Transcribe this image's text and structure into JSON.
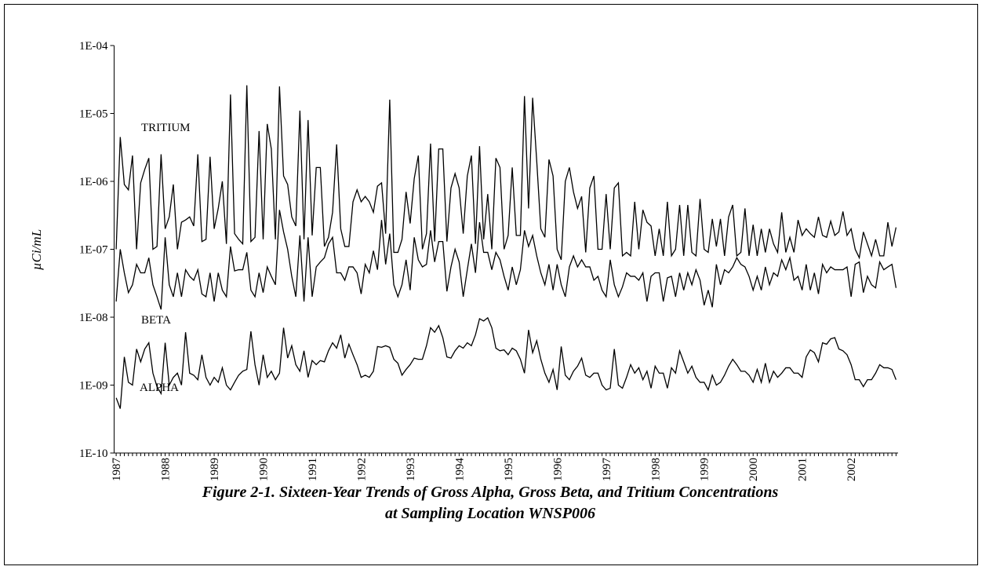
{
  "chart_data": {
    "type": "line",
    "caption": [
      "Figure 2-1. Sixteen-Year Trends of Gross Alpha, Gross Beta, and Tritium Concentrations",
      "at Sampling Location WNSP006"
    ],
    "y_label": "µCi/mL",
    "log_y": true,
    "grid": false,
    "ylim": [
      1e-10,
      0.0001
    ],
    "yticks": [
      {
        "value": 1e-10,
        "label": "1E-10"
      },
      {
        "value": 1e-09,
        "label": "1E-09"
      },
      {
        "value": 1e-08,
        "label": "1E-08"
      },
      {
        "value": 1e-07,
        "label": "1E-07"
      },
      {
        "value": 1e-06,
        "label": "1E-06"
      },
      {
        "value": 1e-05,
        "label": "1E-05"
      },
      {
        "value": 0.0001,
        "label": "1E-04"
      }
    ],
    "categories": [
      "1987",
      null,
      null,
      null,
      null,
      null,
      null,
      null,
      null,
      null,
      null,
      null,
      "1988",
      null,
      null,
      null,
      null,
      null,
      null,
      null,
      null,
      null,
      null,
      null,
      "1989",
      null,
      null,
      null,
      null,
      null,
      null,
      null,
      null,
      null,
      null,
      null,
      "1990",
      null,
      null,
      null,
      null,
      null,
      null,
      null,
      null,
      null,
      null,
      null,
      "1991",
      null,
      null,
      null,
      null,
      null,
      null,
      null,
      null,
      null,
      null,
      null,
      "1992",
      null,
      null,
      null,
      null,
      null,
      null,
      null,
      null,
      null,
      null,
      null,
      "1993",
      null,
      null,
      null,
      null,
      null,
      null,
      null,
      null,
      null,
      null,
      null,
      "1994",
      null,
      null,
      null,
      null,
      null,
      null,
      null,
      null,
      null,
      null,
      null,
      "1995",
      null,
      null,
      null,
      null,
      null,
      null,
      null,
      null,
      null,
      null,
      null,
      "1996",
      null,
      null,
      null,
      null,
      null,
      null,
      null,
      null,
      null,
      null,
      null,
      "1997",
      null,
      null,
      null,
      null,
      null,
      null,
      null,
      null,
      null,
      null,
      null,
      "1998",
      null,
      null,
      null,
      null,
      null,
      null,
      null,
      null,
      null,
      null,
      null,
      "1999",
      null,
      null,
      null,
      null,
      null,
      null,
      null,
      null,
      null,
      null,
      null,
      "2000",
      null,
      null,
      null,
      null,
      null,
      null,
      null,
      null,
      null,
      null,
      null,
      "2001",
      null,
      null,
      null,
      null,
      null,
      null,
      null,
      null,
      null,
      null,
      null,
      "2002",
      null,
      null,
      null,
      null,
      null,
      null,
      null,
      null,
      null,
      null,
      null
    ],
    "series": [
      {
        "name": "TRITIUM",
        "color": "#000000",
        "values": [
          1e-07,
          4.5e-06,
          9e-07,
          7.5e-07,
          2.4e-06,
          1e-07,
          9.5e-07,
          1.5e-06,
          2.2e-06,
          1e-07,
          1.1e-07,
          2.5e-06,
          2e-07,
          3e-07,
          9e-07,
          1e-07,
          2.5e-07,
          2.7e-07,
          3e-07,
          2.2e-07,
          2.5e-06,
          1.3e-07,
          1.4e-07,
          2.3e-06,
          2e-07,
          4e-07,
          1e-06,
          1.2e-07,
          1.9e-05,
          1.7e-07,
          1.4e-07,
          1.2e-07,
          2.6e-05,
          1.3e-07,
          1.5e-07,
          5.5e-06,
          1.4e-07,
          7e-06,
          3e-06,
          1.4e-07,
          2.5e-05,
          1.2e-06,
          9e-07,
          3e-07,
          2.2e-07,
          1.1e-05,
          1.4e-07,
          8e-06,
          1.6e-07,
          1.6e-06,
          1.6e-06,
          1.1e-07,
          1.5e-07,
          3.5e-07,
          3.5e-06,
          2e-07,
          1.1e-07,
          1.1e-07,
          5e-07,
          7.5e-07,
          5e-07,
          6e-07,
          5e-07,
          3.5e-07,
          8.5e-07,
          9.5e-07,
          1.7e-07,
          1.6e-05,
          9e-08,
          9e-08,
          1.4e-07,
          7e-07,
          2.4e-07,
          1.1e-06,
          2.4e-06,
          1e-07,
          1.7e-07,
          3.6e-06,
          1.3e-07,
          3e-06,
          3e-06,
          1.3e-07,
          8e-07,
          1.3e-06,
          8e-07,
          1.7e-07,
          1.2e-06,
          2.4e-06,
          1.2e-07,
          3.3e-06,
          1.4e-07,
          6.5e-07,
          1e-07,
          2.2e-06,
          1.6e-06,
          1e-07,
          1.6e-07,
          1.6e-06,
          1.6e-07,
          1.6e-07,
          1.8e-05,
          4e-07,
          1.7e-05,
          2e-06,
          2e-07,
          1.5e-07,
          2.1e-06,
          1.2e-06,
          1e-07,
          7e-08,
          1e-06,
          1.6e-06,
          7e-07,
          4e-07,
          6e-07,
          9e-08,
          8e-07,
          1.2e-06,
          1e-07,
          1e-07,
          6.5e-07,
          1e-07,
          8e-07,
          9.5e-07,
          8e-08,
          9e-08,
          8e-08,
          5e-07,
          1e-07,
          3.8e-07,
          2.5e-07,
          2.2e-07,
          8e-08,
          2e-07,
          8e-08,
          5e-07,
          8e-08,
          1e-07,
          4.5e-07,
          8e-08,
          4.5e-07,
          9e-08,
          8e-08,
          5.5e-07,
          1e-07,
          9e-08,
          2.8e-07,
          1.1e-07,
          2.8e-07,
          8e-08,
          3e-07,
          4.5e-07,
          8e-08,
          9e-08,
          4e-07,
          8e-08,
          2.3e-07,
          8e-08,
          2e-07,
          9e-08,
          2e-07,
          1.2e-07,
          9e-08,
          3.5e-07,
          9e-08,
          1.5e-07,
          9e-08,
          2.7e-07,
          1.6e-07,
          2e-07,
          1.7e-07,
          1.5e-07,
          3e-07,
          1.6e-07,
          1.5e-07,
          2.6e-07,
          1.6e-07,
          1.8e-07,
          3.6e-07,
          1.6e-07,
          2e-07,
          1e-07,
          7.5e-08,
          1.8e-07,
          1.2e-07,
          8e-08,
          1.4e-07,
          8e-08,
          8e-08,
          2.5e-07,
          1.1e-07,
          2.1e-07
        ]
      },
      {
        "name": "BETA",
        "color": "#000000",
        "values": [
          1.7e-08,
          1e-07,
          4.5e-08,
          2.3e-08,
          3e-08,
          6e-08,
          4.5e-08,
          4.5e-08,
          7.5e-08,
          3e-08,
          2e-08,
          1.3e-08,
          1.5e-07,
          3e-08,
          2e-08,
          4.5e-08,
          2e-08,
          5e-08,
          4e-08,
          3.5e-08,
          5e-08,
          2.2e-08,
          2e-08,
          4.5e-08,
          1.7e-08,
          4.5e-08,
          2.5e-08,
          2e-08,
          1.1e-07,
          4.8e-08,
          5e-08,
          5e-08,
          9e-08,
          2.5e-08,
          2e-08,
          4.5e-08,
          2.3e-08,
          5.5e-08,
          4e-08,
          3e-08,
          3.8e-07,
          1.8e-07,
          1e-07,
          4e-08,
          2e-08,
          1.6e-07,
          1.7e-08,
          1.5e-07,
          2e-08,
          5.5e-08,
          6.5e-08,
          7.5e-08,
          1.2e-07,
          1.5e-07,
          4.5e-08,
          4.5e-08,
          3.5e-08,
          5.5e-08,
          5.5e-08,
          4.5e-08,
          2.2e-08,
          6e-08,
          4.5e-08,
          9.5e-08,
          5e-08,
          2.7e-07,
          6e-08,
          1.7e-07,
          3e-08,
          2e-08,
          3e-08,
          7e-08,
          2.5e-08,
          1.5e-07,
          7e-08,
          5.5e-08,
          6e-08,
          1.9e-07,
          6.5e-08,
          1.3e-07,
          1.3e-07,
          2.4e-08,
          5.5e-08,
          1e-07,
          6.5e-08,
          2e-08,
          5e-08,
          1.2e-07,
          4.5e-08,
          2.5e-07,
          9e-08,
          9e-08,
          5e-08,
          9e-08,
          7e-08,
          4e-08,
          2.5e-08,
          5.5e-08,
          3e-08,
          5e-08,
          1.9e-07,
          1.1e-07,
          1.6e-07,
          8e-08,
          4.5e-08,
          3e-08,
          6e-08,
          2.5e-08,
          6e-08,
          3e-08,
          2e-08,
          5.5e-08,
          8e-08,
          5.5e-08,
          7e-08,
          5.5e-08,
          5.5e-08,
          3.5e-08,
          4e-08,
          2.5e-08,
          2e-08,
          7e-08,
          3e-08,
          2e-08,
          2.8e-08,
          4.5e-08,
          4e-08,
          4e-08,
          3.5e-08,
          4.5e-08,
          1.7e-08,
          4e-08,
          4.5e-08,
          4.5e-08,
          1.7e-08,
          3.8e-08,
          4e-08,
          2e-08,
          4.5e-08,
          2.5e-08,
          4.5e-08,
          3e-08,
          5e-08,
          3.5e-08,
          1.5e-08,
          2.5e-08,
          1.4e-08,
          6e-08,
          3e-08,
          5e-08,
          4.5e-08,
          5.5e-08,
          7.5e-08,
          6e-08,
          5.5e-08,
          4e-08,
          2.5e-08,
          4e-08,
          2.5e-08,
          5.5e-08,
          3e-08,
          4.5e-08,
          4e-08,
          7e-08,
          5e-08,
          7.5e-08,
          3.5e-08,
          4e-08,
          2.5e-08,
          6e-08,
          2.5e-08,
          4.5e-08,
          2.2e-08,
          6e-08,
          4.5e-08,
          5.5e-08,
          5e-08,
          5e-08,
          5e-08,
          5.5e-08,
          2e-08,
          6e-08,
          6.5e-08,
          2.3e-08,
          4e-08,
          3e-08,
          2.7e-08,
          6.5e-08,
          5e-08,
          5.5e-08,
          6e-08,
          2.7e-08
        ]
      },
      {
        "name": "ALPHA",
        "color": "#000000",
        "values": [
          6.5e-10,
          4.5e-10,
          2.6e-09,
          1.1e-09,
          1e-09,
          3.4e-09,
          2.2e-09,
          3.4e-09,
          4.2e-09,
          1.5e-09,
          9.5e-10,
          7.5e-10,
          4.2e-09,
          1e-09,
          1.3e-09,
          1.5e-09,
          1e-09,
          6e-09,
          1.5e-09,
          1.4e-09,
          1.2e-09,
          2.8e-09,
          1.3e-09,
          1e-09,
          1.3e-09,
          1.1e-09,
          1.8e-09,
          1e-09,
          8.5e-10,
          1.1e-09,
          1.4e-09,
          1.6e-09,
          1.7e-09,
          6.2e-09,
          2e-09,
          1e-09,
          2.8e-09,
          1.3e-09,
          1.6e-09,
          1.2e-09,
          1.5e-09,
          7e-09,
          2.5e-09,
          3.8e-09,
          2e-09,
          1.6e-09,
          3.2e-09,
          1.3e-09,
          2.3e-09,
          2e-09,
          2.3e-09,
          2.2e-09,
          3.2e-09,
          4.2e-09,
          3.5e-09,
          5.5e-09,
          2.5e-09,
          4e-09,
          2.8e-09,
          2e-09,
          1.3e-09,
          1.4e-09,
          1.3e-09,
          1.6e-09,
          3.7e-09,
          3.6e-09,
          3.8e-09,
          3.6e-09,
          2.4e-09,
          2.1e-09,
          1.4e-09,
          1.7e-09,
          2e-09,
          2.5e-09,
          2.4e-09,
          2.4e-09,
          3.8e-09,
          7e-09,
          6e-09,
          7.5e-09,
          5e-09,
          2.6e-09,
          2.5e-09,
          3.2e-09,
          3.8e-09,
          3.5e-09,
          4.2e-09,
          3.8e-09,
          5.5e-09,
          9.5e-09,
          8.8e-09,
          9.8e-09,
          7e-09,
          3.5e-09,
          3.2e-09,
          3.3e-09,
          2.8e-09,
          3.5e-09,
          3.2e-09,
          2.4e-09,
          1.5e-09,
          6.5e-09,
          3e-09,
          4.5e-09,
          2.4e-09,
          1.5e-09,
          1.1e-09,
          1.7e-09,
          8.5e-10,
          3.7e-09,
          1.4e-09,
          1.2e-09,
          1.6e-09,
          1.9e-09,
          2.5e-09,
          1.4e-09,
          1.3e-09,
          1.5e-09,
          1.5e-09,
          1e-09,
          8.5e-10,
          9e-10,
          3.4e-09,
          1e-09,
          9e-10,
          1.3e-09,
          2e-09,
          1.5e-09,
          1.8e-09,
          1.2e-09,
          1.6e-09,
          9e-10,
          1.9e-09,
          1.5e-09,
          1.5e-09,
          9e-10,
          1.8e-09,
          1.5e-09,
          3.2e-09,
          2.2e-09,
          1.5e-09,
          1.9e-09,
          1.3e-09,
          1.1e-09,
          1.1e-09,
          8.5e-10,
          1.4e-09,
          1e-09,
          1.1e-09,
          1.4e-09,
          1.9e-09,
          2.4e-09,
          2e-09,
          1.6e-09,
          1.6e-09,
          1.4e-09,
          1.1e-09,
          1.7e-09,
          1.1e-09,
          2.1e-09,
          1.1e-09,
          1.6e-09,
          1.3e-09,
          1.5e-09,
          1.8e-09,
          1.8e-09,
          1.5e-09,
          1.5e-09,
          1.3e-09,
          2.6e-09,
          3.3e-09,
          3e-09,
          2.2e-09,
          4.2e-09,
          4e-09,
          4.8e-09,
          5e-09,
          3.4e-09,
          3.2e-09,
          2.8e-09,
          2e-09,
          1.2e-09,
          1.2e-09,
          9.5e-10,
          1.2e-09,
          1.2e-09,
          1.5e-09,
          2e-09,
          1.8e-09,
          1.8e-09,
          1.7e-09,
          1.2e-09
        ]
      }
    ]
  }
}
